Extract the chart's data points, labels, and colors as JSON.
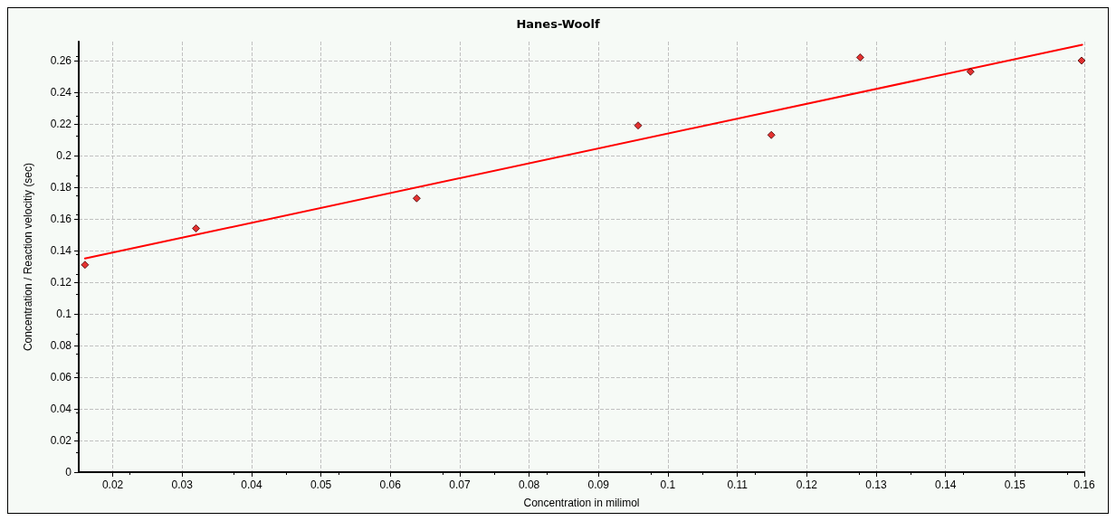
{
  "chart_data": {
    "type": "scatter",
    "title": "Hanes-Woolf",
    "xlabel": "Concentration in milimol",
    "ylabel": "Concentration / Reaction velocitiy (sec)",
    "xlim": [
      0.0151,
      0.16
    ],
    "xticks": [
      0.02,
      0.03,
      0.04,
      0.05,
      0.06,
      0.07,
      0.08,
      0.09,
      0.1,
      0.11,
      0.12,
      0.13,
      0.14,
      0.15,
      0.16
    ],
    "ylim": [
      0,
      0.272
    ],
    "yticks": [
      0,
      0.02,
      0.04,
      0.06,
      0.08,
      0.1,
      0.12,
      0.14,
      0.16,
      0.18,
      0.2,
      0.22,
      0.24,
      0.26
    ],
    "grid": true,
    "series": [
      {
        "color": "#e00000",
        "marker": "diamond",
        "x": [
          0.016,
          0.032,
          0.0638,
          0.0957,
          0.1149,
          0.1277,
          0.1436,
          0.1596
        ],
        "values": [
          0.131,
          0.154,
          0.173,
          0.219,
          0.213,
          0.262,
          0.253,
          0.26
        ]
      },
      {
        "type": "line",
        "color": "#ff0000",
        "marker": "none",
        "line_style": "solid",
        "x": [
          0.016,
          0.1597
        ],
        "values": [
          0.135,
          0.27
        ]
      }
    ]
  }
}
